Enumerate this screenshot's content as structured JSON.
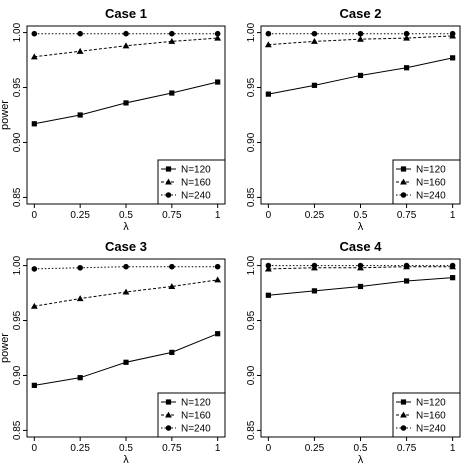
{
  "chart_data": [
    {
      "type": "line",
      "title": "Case 1",
      "xlabel": "λ",
      "ylabel": "power",
      "x": [
        0,
        0.25,
        0.5,
        0.75,
        1
      ],
      "xtick_labels": [
        "0",
        "0.25",
        "0.5",
        "0.75",
        "1"
      ],
      "ylim": [
        0.85,
        1.0
      ],
      "yticks": [
        0.85,
        0.9,
        0.95,
        1.0
      ],
      "ytick_labels": [
        "0.85",
        "0.90",
        "0.95",
        "1.00"
      ],
      "grid": false,
      "legend_position": "bottom-right",
      "series": [
        {
          "name": "N=120",
          "marker": "square",
          "line": "solid",
          "values": [
            0.917,
            0.925,
            0.936,
            0.945,
            0.955
          ]
        },
        {
          "name": "N=160",
          "marker": "triangle",
          "line": "dashed",
          "values": [
            0.978,
            0.983,
            0.988,
            0.992,
            0.995
          ]
        },
        {
          "name": "N=240",
          "marker": "circle",
          "line": "dotted",
          "values": [
            0.999,
            0.999,
            0.999,
            0.999,
            0.999
          ]
        }
      ]
    },
    {
      "type": "line",
      "title": "Case 2",
      "xlabel": "λ",
      "ylabel": "",
      "x": [
        0,
        0.25,
        0.5,
        0.75,
        1
      ],
      "xtick_labels": [
        "0",
        "0.25",
        "0.5",
        "0.75",
        "1"
      ],
      "ylim": [
        0.85,
        1.0
      ],
      "yticks": [
        0.85,
        0.9,
        0.95,
        1.0
      ],
      "ytick_labels": [
        "0.85",
        "0.90",
        "0.95",
        "1.00"
      ],
      "grid": false,
      "legend_position": "bottom-right",
      "series": [
        {
          "name": "N=120",
          "marker": "square",
          "line": "solid",
          "values": [
            0.944,
            0.952,
            0.961,
            0.968,
            0.977
          ]
        },
        {
          "name": "N=160",
          "marker": "triangle",
          "line": "dashed",
          "values": [
            0.989,
            0.992,
            0.994,
            0.995,
            0.997
          ]
        },
        {
          "name": "N=240",
          "marker": "circle",
          "line": "dotted",
          "values": [
            0.999,
            0.999,
            0.999,
            0.999,
            0.999
          ]
        }
      ]
    },
    {
      "type": "line",
      "title": "Case 3",
      "xlabel": "λ",
      "ylabel": "power",
      "x": [
        0,
        0.25,
        0.5,
        0.75,
        1
      ],
      "xtick_labels": [
        "0",
        "0.25",
        "0.5",
        "0.75",
        "1"
      ],
      "ylim": [
        0.85,
        1.0
      ],
      "yticks": [
        0.85,
        0.9,
        0.95,
        1.0
      ],
      "ytick_labels": [
        "0.85",
        "0.90",
        "0.95",
        "1.00"
      ],
      "grid": false,
      "legend_position": "bottom-right",
      "series": [
        {
          "name": "N=120",
          "marker": "square",
          "line": "solid",
          "values": [
            0.891,
            0.898,
            0.912,
            0.921,
            0.938
          ]
        },
        {
          "name": "N=160",
          "marker": "triangle",
          "line": "dashed",
          "values": [
            0.963,
            0.97,
            0.976,
            0.981,
            0.987
          ]
        },
        {
          "name": "N=240",
          "marker": "circle",
          "line": "dotted",
          "values": [
            0.997,
            0.998,
            0.999,
            0.999,
            0.999
          ]
        }
      ]
    },
    {
      "type": "line",
      "title": "Case 4",
      "xlabel": "λ",
      "ylabel": "",
      "x": [
        0,
        0.25,
        0.5,
        0.75,
        1
      ],
      "xtick_labels": [
        "0",
        "0.25",
        "0.5",
        "0.75",
        "1"
      ],
      "ylim": [
        0.85,
        1.0
      ],
      "yticks": [
        0.85,
        0.9,
        0.95,
        1.0
      ],
      "ytick_labels": [
        "0.85",
        "0.90",
        "0.95",
        "1.00"
      ],
      "grid": false,
      "legend_position": "bottom-right",
      "series": [
        {
          "name": "N=120",
          "marker": "square",
          "line": "solid",
          "values": [
            0.973,
            0.977,
            0.981,
            0.986,
            0.989
          ]
        },
        {
          "name": "N=160",
          "marker": "triangle",
          "line": "dashed",
          "values": [
            0.997,
            0.998,
            0.998,
            0.999,
            0.999
          ]
        },
        {
          "name": "N=240",
          "marker": "circle",
          "line": "dotted",
          "values": [
            1.0,
            1.0,
            1.0,
            1.0,
            1.0
          ]
        }
      ]
    }
  ]
}
